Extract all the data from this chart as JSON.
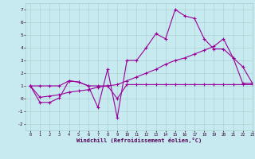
{
  "xlabel": "Windchill (Refroidissement éolien,°C)",
  "xlim": [
    -0.5,
    23
  ],
  "ylim": [
    -2.5,
    7.5
  ],
  "xticks": [
    0,
    1,
    2,
    3,
    4,
    5,
    6,
    7,
    8,
    9,
    10,
    11,
    12,
    13,
    14,
    15,
    16,
    17,
    18,
    19,
    20,
    21,
    22,
    23
  ],
  "yticks": [
    -2,
    -1,
    0,
    1,
    2,
    3,
    4,
    5,
    6,
    7
  ],
  "background_color": "#c6eaf0",
  "grid_color": "#aacccc",
  "line_color": "#990099",
  "line1_x": [
    0,
    1,
    2,
    3,
    4,
    5,
    6,
    7,
    8,
    9,
    10,
    11,
    12,
    13,
    14,
    15,
    16,
    17,
    18,
    19,
    20,
    21,
    22,
    23
  ],
  "line1_y": [
    1.0,
    -0.3,
    -0.3,
    0.05,
    1.4,
    1.3,
    1.0,
    -0.7,
    2.3,
    -1.5,
    3.0,
    3.0,
    4.0,
    5.1,
    4.7,
    7.0,
    6.5,
    6.3,
    4.7,
    3.9,
    3.9,
    3.2,
    1.2,
    1.2
  ],
  "line2_x": [
    0,
    1,
    2,
    3,
    4,
    5,
    6,
    7,
    8,
    9,
    10,
    11,
    12,
    13,
    14,
    15,
    16,
    17,
    18,
    19,
    20,
    21,
    22,
    23
  ],
  "line2_y": [
    1.0,
    0.1,
    0.2,
    0.3,
    0.5,
    0.6,
    0.7,
    0.9,
    1.0,
    1.1,
    1.4,
    1.7,
    2.0,
    2.3,
    2.7,
    3.0,
    3.2,
    3.5,
    3.8,
    4.1,
    4.7,
    3.2,
    2.5,
    1.2
  ],
  "line3_x": [
    0,
    1,
    2,
    3,
    4,
    5,
    6,
    7,
    8,
    9,
    10,
    11,
    12,
    13,
    14,
    15,
    16,
    17,
    18,
    19,
    20,
    21,
    22,
    23
  ],
  "line3_y": [
    1.0,
    1.0,
    1.0,
    1.0,
    1.4,
    1.3,
    1.0,
    1.0,
    1.0,
    0.0,
    1.1,
    1.1,
    1.1,
    1.1,
    1.1,
    1.1,
    1.1,
    1.1,
    1.1,
    1.1,
    1.1,
    1.1,
    1.1,
    1.1
  ]
}
